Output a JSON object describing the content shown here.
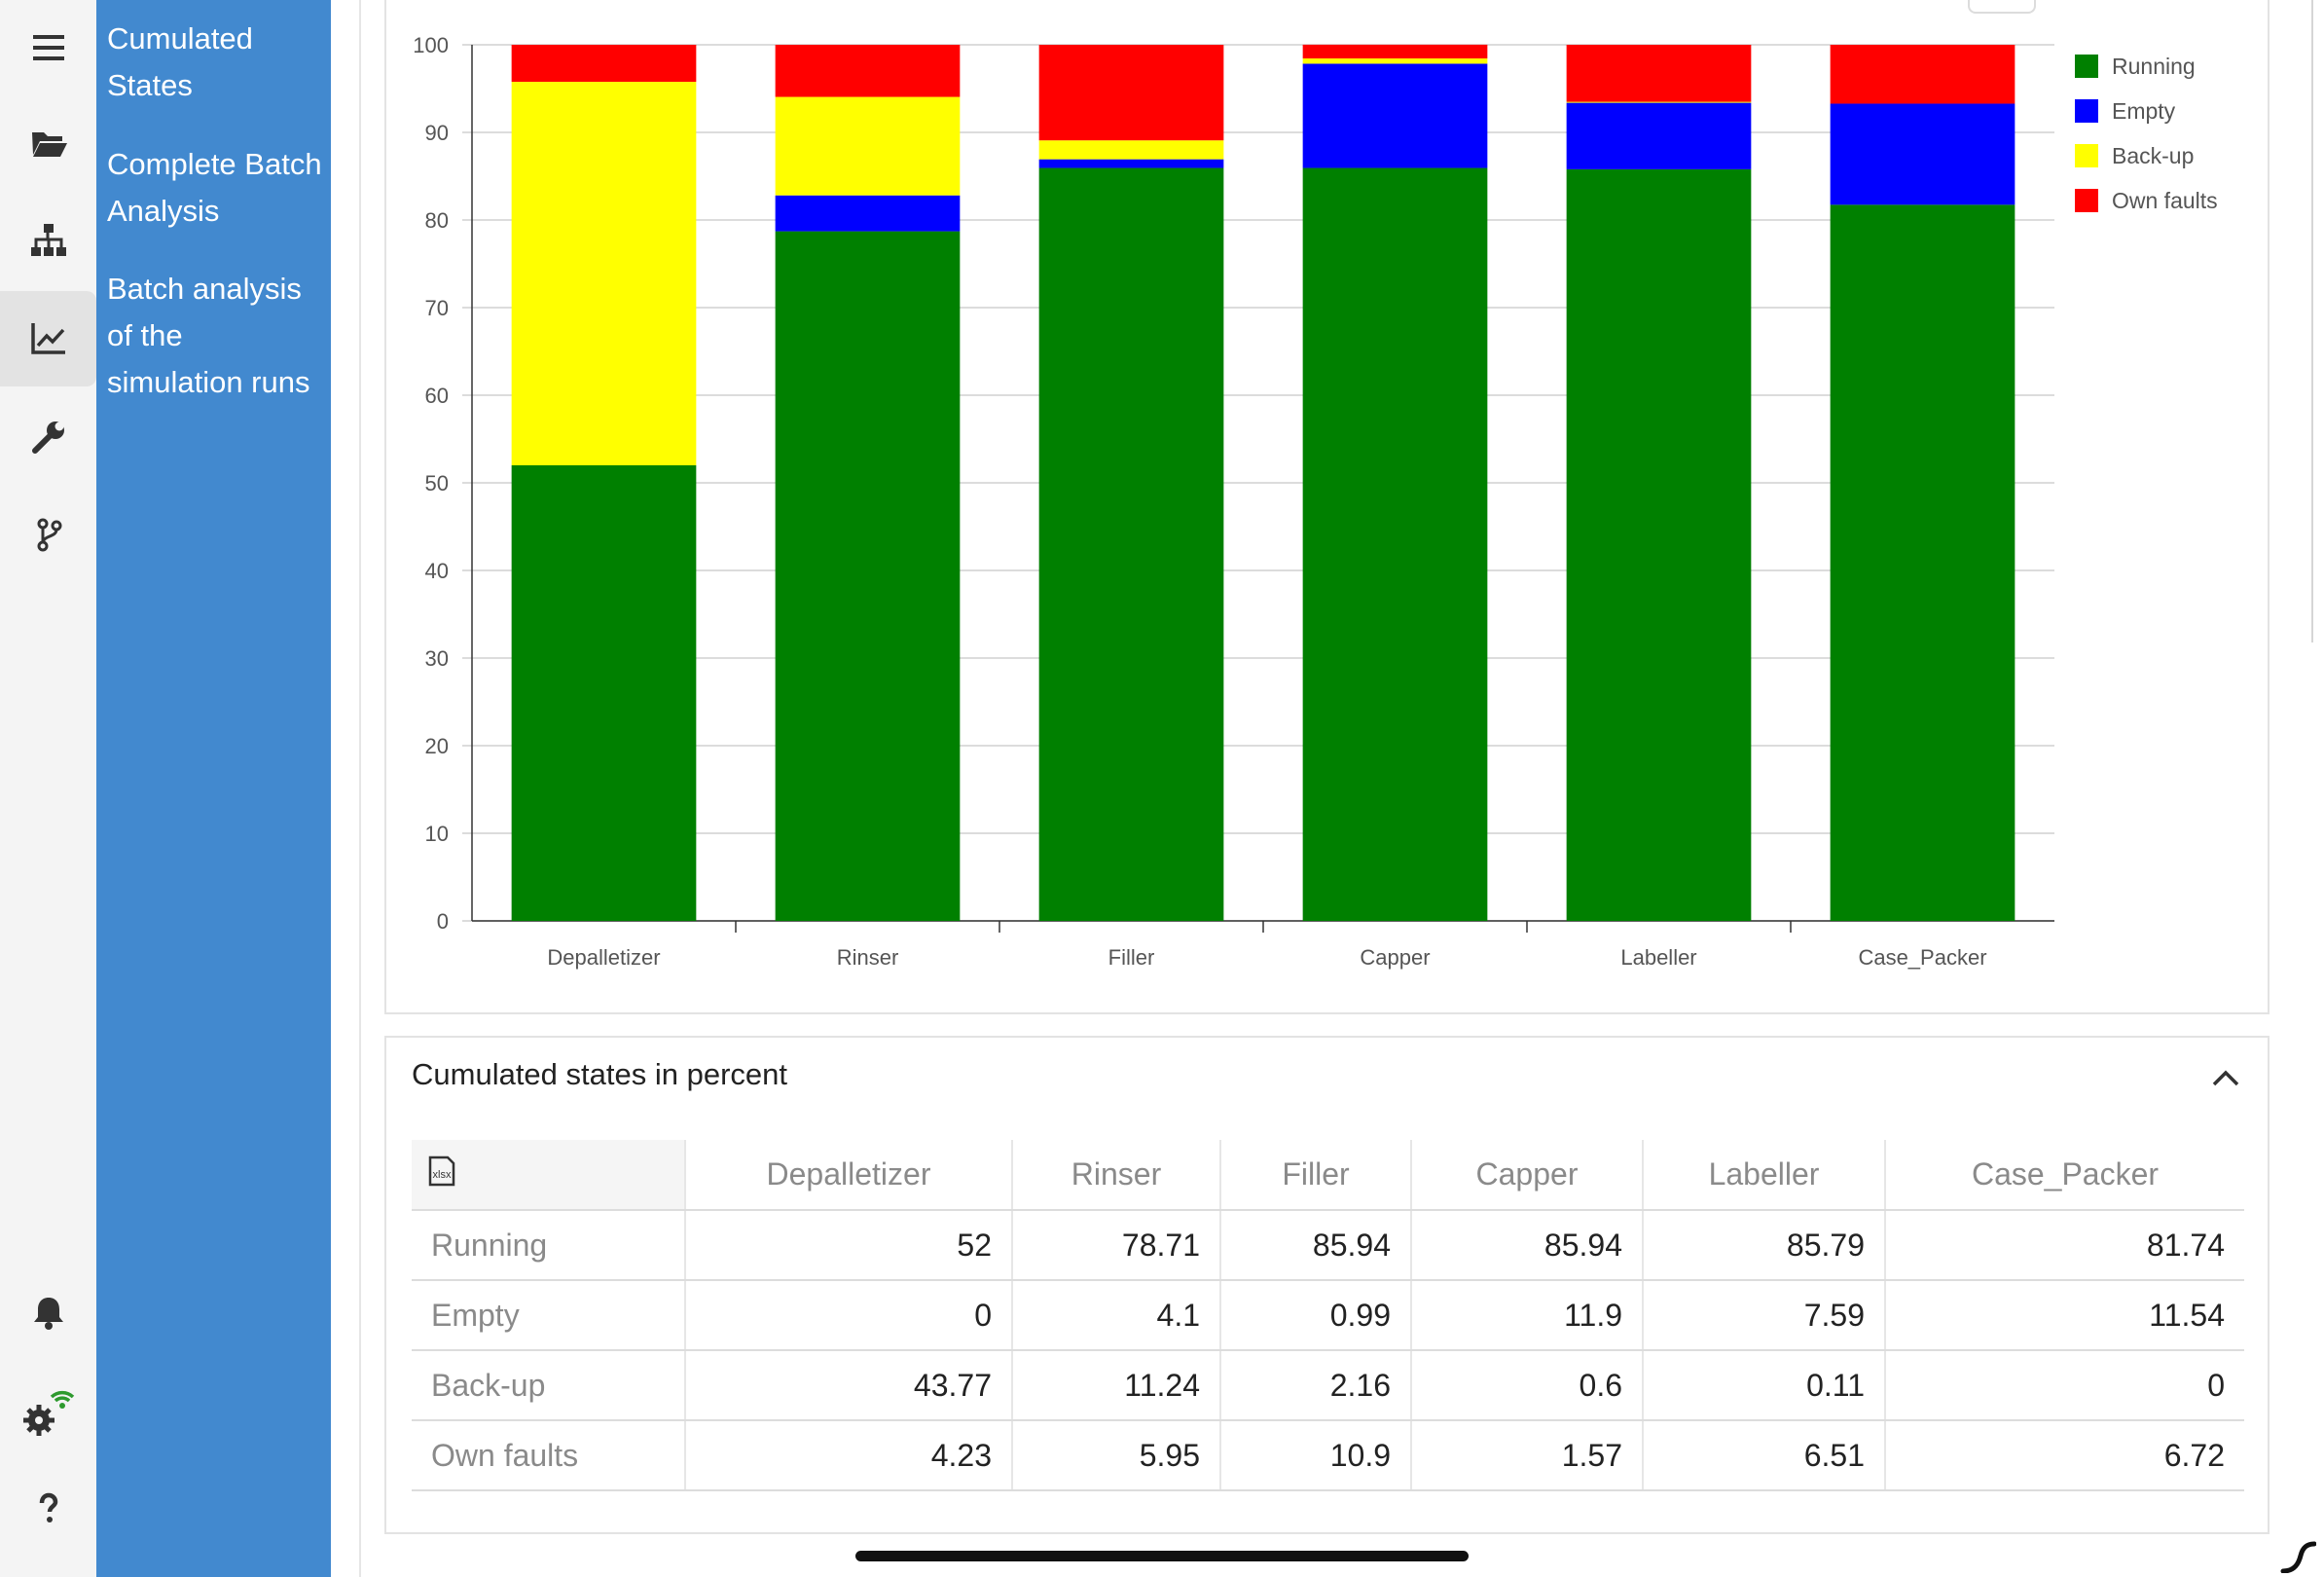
{
  "rail": {
    "items": [
      {
        "icon": "menu-icon"
      },
      {
        "icon": "folder-open-icon"
      },
      {
        "icon": "sitemap-icon"
      },
      {
        "icon": "chart-line-icon",
        "active": true
      },
      {
        "icon": "wrench-icon"
      },
      {
        "icon": "code-branch-icon"
      },
      {
        "icon": "bell-icon"
      },
      {
        "icon": "settings-wifi-icon"
      },
      {
        "icon": "help-icon"
      }
    ]
  },
  "nav": {
    "items": [
      {
        "label": "Cumulated States"
      },
      {
        "label": "Complete Batch Analysis"
      },
      {
        "label": "Batch analysis of the simulation runs"
      }
    ]
  },
  "colors": {
    "Running": "#008000",
    "Empty": "#0000ff",
    "Back-up": "#ffff00",
    "Own faults": "#ff0000",
    "nav": "#4289cf"
  },
  "chart_data": {
    "type": "bar",
    "stacked": true,
    "categories": [
      "Depalletizer",
      "Rinser",
      "Filler",
      "Capper",
      "Labeller",
      "Case_Packer"
    ],
    "series": [
      {
        "name": "Running",
        "values": [
          52,
          78.71,
          85.94,
          85.94,
          85.79,
          81.74
        ]
      },
      {
        "name": "Empty",
        "values": [
          0,
          4.1,
          0.99,
          11.9,
          7.59,
          11.54
        ]
      },
      {
        "name": "Back-up",
        "values": [
          43.77,
          11.24,
          2.16,
          0.6,
          0.11,
          0
        ]
      },
      {
        "name": "Own faults",
        "values": [
          4.23,
          5.95,
          10.9,
          1.57,
          6.51,
          6.72
        ]
      }
    ],
    "yticks": [
      "0",
      "10",
      "20",
      "30",
      "40",
      "50",
      "60",
      "70",
      "80",
      "90",
      "100"
    ],
    "ylim": [
      0,
      100
    ],
    "grid": true,
    "legend_position": "right"
  },
  "table": {
    "title": "Cumulated states in percent",
    "export_icon": "xlsx-export-icon",
    "columns": [
      "Depalletizer",
      "Rinser",
      "Filler",
      "Capper",
      "Labeller",
      "Case_Packer"
    ],
    "rows": [
      {
        "label": "Running",
        "cells": [
          "52",
          "78.71",
          "85.94",
          "85.94",
          "85.79",
          "81.74"
        ]
      },
      {
        "label": "Empty",
        "cells": [
          "0",
          "4.1",
          "0.99",
          "11.9",
          "7.59",
          "11.54"
        ]
      },
      {
        "label": "Back-up",
        "cells": [
          "43.77",
          "11.24",
          "2.16",
          "0.6",
          "0.11",
          "0"
        ]
      },
      {
        "label": "Own faults",
        "cells": [
          "4.23",
          "5.95",
          "10.9",
          "1.57",
          "6.51",
          "6.72"
        ]
      }
    ]
  }
}
